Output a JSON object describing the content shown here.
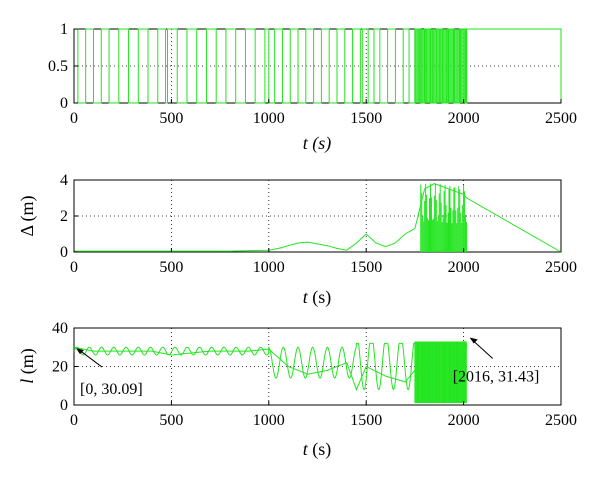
{
  "chart_data": [
    {
      "type": "line",
      "xlabel": "t (s)",
      "ylabel": "",
      "xlim": [
        0,
        2500
      ],
      "ylim": [
        0,
        1
      ],
      "xticks": [
        0,
        500,
        1000,
        1500,
        2000,
        2500
      ],
      "yticks": [
        0,
        0.5,
        1
      ],
      "grid": true,
      "line_color": "#22e51f",
      "description_values": "binary switching signal 0/1, switching frequency increases near 1750-2016 s, zero after 2016 s",
      "series": [
        {
          "x": [
            0,
            20,
            60,
            100,
            140,
            180,
            230,
            280,
            330,
            380,
            430,
            470,
            480,
            530,
            580,
            630,
            680,
            730,
            780,
            830,
            880,
            930,
            980,
            1000,
            1030,
            1070,
            1110,
            1150,
            1190,
            1230,
            1270,
            1310,
            1350,
            1390,
            1430,
            1470,
            1480,
            1510,
            1540,
            1570,
            1610,
            1650,
            1690,
            1720,
            1750,
            1780,
            1800,
            1830,
            1860,
            1890,
            1920,
            1950,
            1980,
            2010,
            2016,
            2500
          ],
          "y": [
            1,
            0,
            1,
            0,
            1,
            0,
            1,
            0,
            1,
            0,
            1,
            0,
            1,
            0,
            1,
            0,
            1,
            0,
            1,
            0,
            1,
            0,
            1,
            0,
            1,
            0,
            1,
            0,
            1,
            0,
            1,
            0,
            1,
            0,
            1,
            0,
            1,
            0,
            1,
            0,
            1,
            0,
            1,
            0,
            1,
            0,
            1,
            0,
            1,
            0,
            1,
            0,
            1,
            0,
            1,
            0
          ]
        }
      ]
    },
    {
      "type": "line",
      "xlabel": "t (s)",
      "ylabel": "Δ (m)",
      "xlim": [
        0,
        2500
      ],
      "ylim": [
        0,
        4
      ],
      "xticks": [
        0,
        500,
        1000,
        1500,
        2000,
        2500
      ],
      "yticks": [
        0,
        2,
        4
      ],
      "grid": true,
      "line_color": "#22e51f",
      "series": [
        {
          "x": [
            0,
            200,
            400,
            600,
            800,
            1000,
            1050,
            1100,
            1150,
            1200,
            1250,
            1300,
            1350,
            1400,
            1450,
            1500,
            1550,
            1600,
            1650,
            1700,
            1750,
            1800,
            1850,
            1900,
            1950,
            2000,
            2016,
            2500
          ],
          "y": [
            0.05,
            0.05,
            0.05,
            0.05,
            0.05,
            0.1,
            0.2,
            0.35,
            0.5,
            0.55,
            0.45,
            0.35,
            0.2,
            0.1,
            0.5,
            1.0,
            0.5,
            0.3,
            0.5,
            1.0,
            1.3,
            3.5,
            3.8,
            3.6,
            3.4,
            3.2,
            3.0,
            0
          ]
        }
      ]
    },
    {
      "type": "line",
      "xlabel": "t (s)",
      "ylabel": "l (m)",
      "xlim": [
        0,
        2500
      ],
      "ylim": [
        0,
        40
      ],
      "xticks": [
        0,
        500,
        1000,
        1500,
        2000,
        2500
      ],
      "yticks": [
        0,
        20,
        40
      ],
      "grid": true,
      "line_color": "#22e51f",
      "annotations": [
        {
          "text": "[0, 30.09]",
          "x": 0,
          "y": 30.09
        },
        {
          "text": "[2016, 31.43]",
          "x": 2016,
          "y": 31.43
        }
      ],
      "series": [
        {
          "x": [
            0,
            100,
            200,
            300,
            400,
            500,
            600,
            700,
            800,
            900,
            1000,
            1100,
            1200,
            1300,
            1400,
            1450,
            1500,
            1600,
            1700,
            1750,
            1800,
            1900,
            2000,
            2016
          ],
          "y": [
            30.09,
            28,
            28,
            28,
            28,
            26,
            27,
            28,
            28,
            28,
            29,
            20,
            16,
            18,
            22,
            8,
            20,
            15,
            12,
            18,
            15,
            17,
            16,
            31.43
          ]
        }
      ]
    }
  ]
}
